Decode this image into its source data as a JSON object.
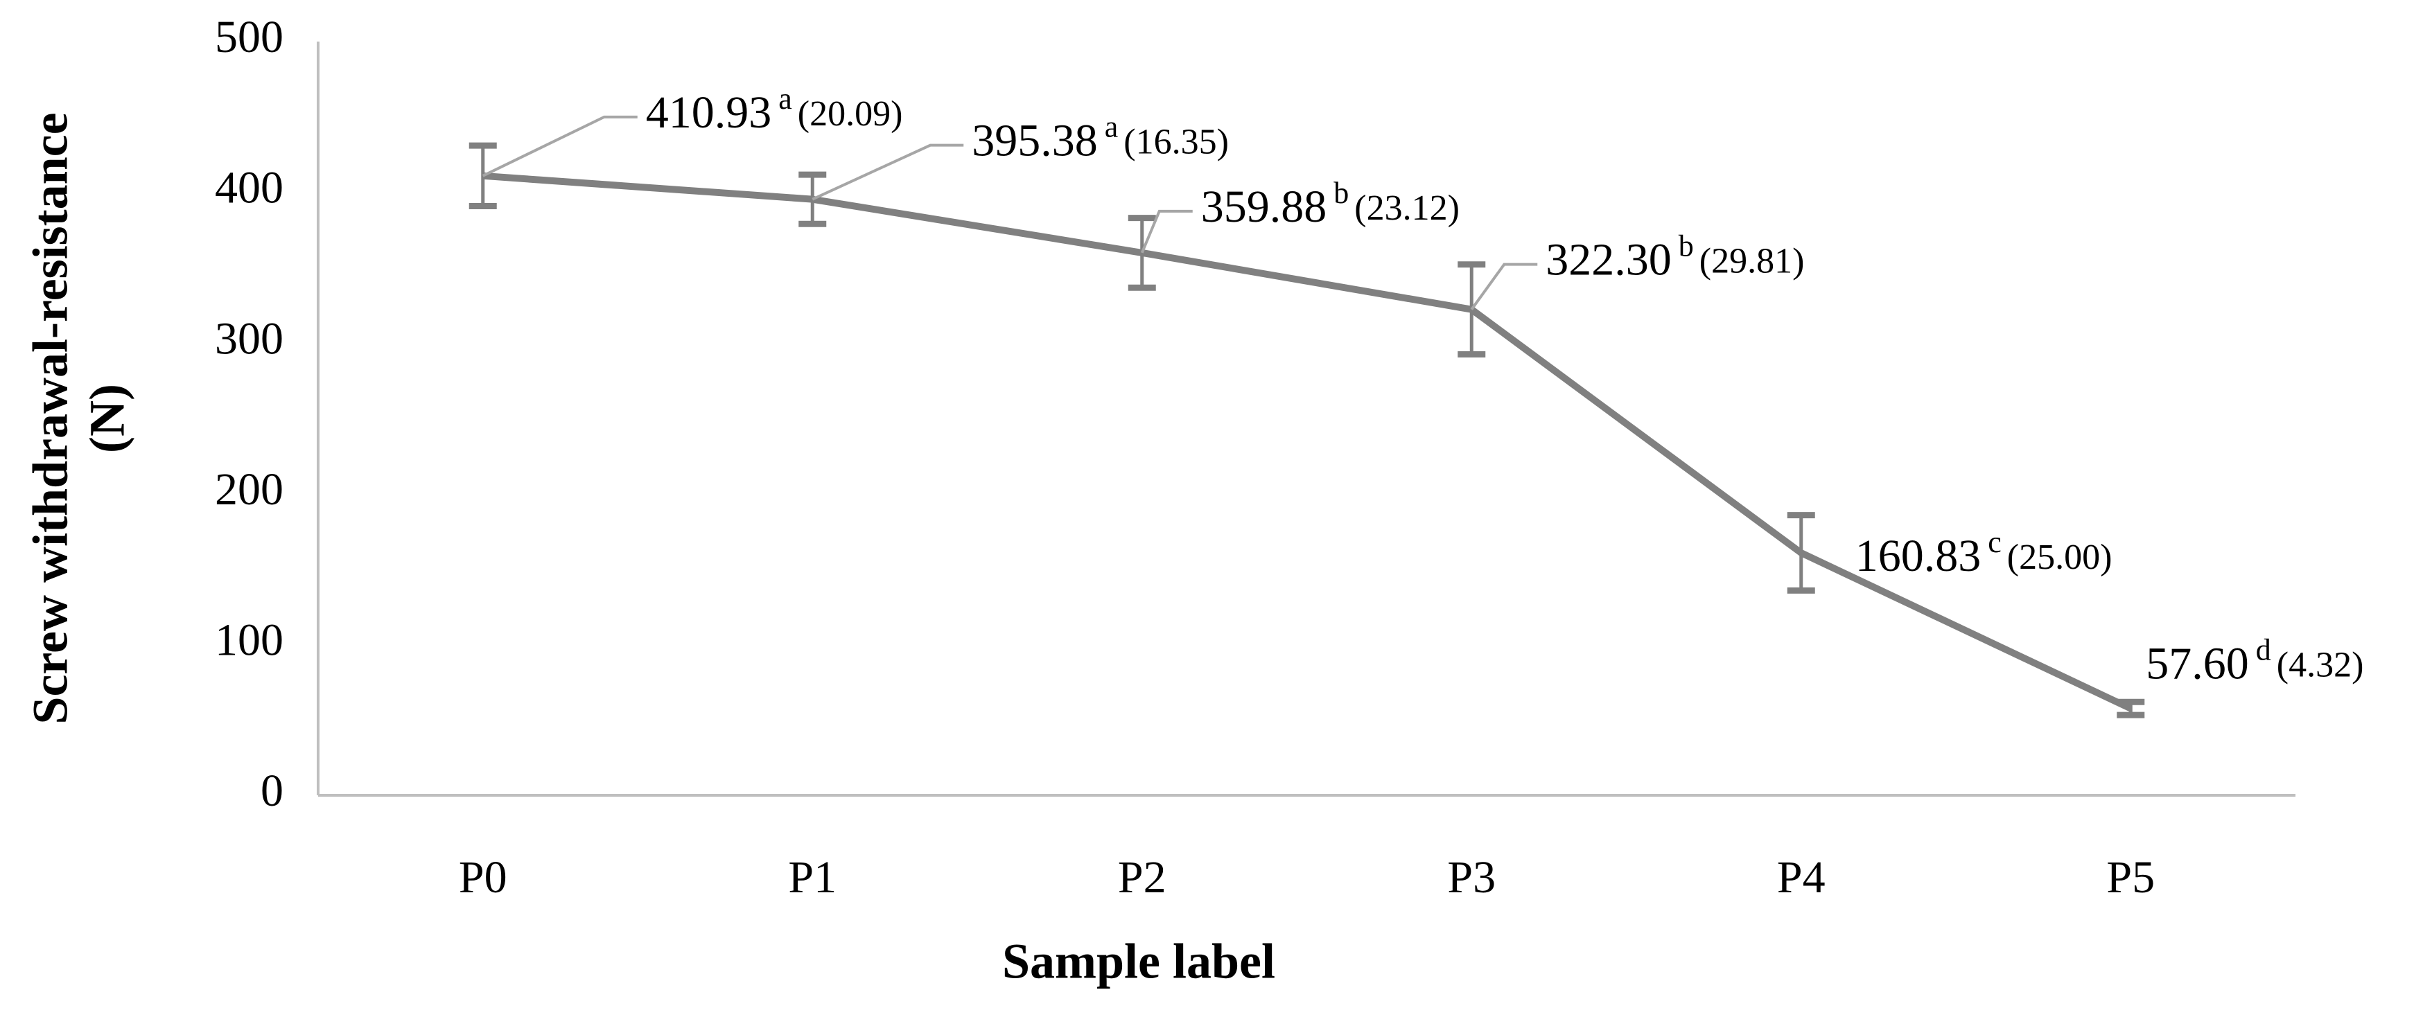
{
  "chart_data": {
    "type": "line",
    "xlabel": "Sample label",
    "ylabel_lines": [
      "Screw withdrawal-resistance",
      "(N)"
    ],
    "categories": [
      "P0",
      "P1",
      "P2",
      "P3",
      "P4",
      "P5"
    ],
    "series": [
      {
        "color": "#808080",
        "values": [
          410.93,
          395.38,
          359.88,
          322.3,
          160.83,
          57.6
        ],
        "value_labels": [
          "410.93",
          "395.38",
          "359.88",
          "322.30",
          "160.83",
          "57.60"
        ],
        "groups": [
          "a",
          "a",
          "b",
          "b",
          "c",
          "d"
        ],
        "errors": [
          20.09,
          16.35,
          23.12,
          29.81,
          25.0,
          4.32
        ],
        "error_labels": [
          "(20.09)",
          "(16.35)",
          "(23.12)",
          "(29.81)",
          "(25.00)",
          "(4.32)"
        ]
      }
    ],
    "ylim": [
      0,
      500
    ],
    "yticks": [
      0,
      100,
      200,
      300,
      400,
      500
    ]
  }
}
